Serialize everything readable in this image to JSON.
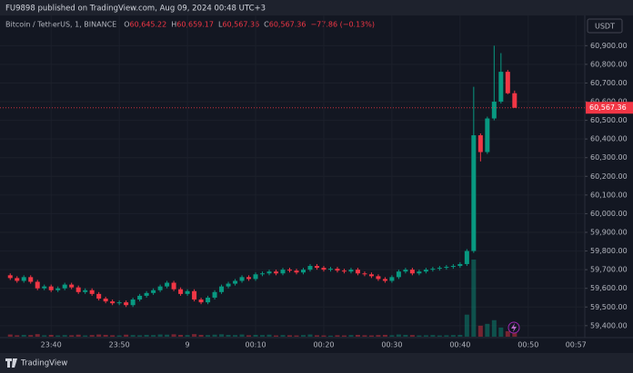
{
  "header": {
    "published": "FU9898 published on TradingView.com, Aug 09, 2024 00:48 UTC+3"
  },
  "footer": {
    "brand": "TradingView"
  },
  "chart_data": {
    "type": "candlestick",
    "legend": {
      "symbol": "Bitcoin / TetherUS, 1, BINANCE",
      "fields": [
        {
          "key": "O",
          "value": "60,645.22"
        },
        {
          "key": "H",
          "value": "60,659.17"
        },
        {
          "key": "L",
          "value": "60,567.36"
        },
        {
          "key": "C",
          "value": "60,567.36"
        }
      ],
      "change": "−77.86 (−0.13%)"
    },
    "currency": "USDT",
    "up_color": "#089981",
    "down_color": "#f23645",
    "grid": true,
    "price_label": {
      "value": 60567.36,
      "label": "60,567.36"
    },
    "x": [
      34,
      35,
      36,
      37,
      38,
      39,
      40,
      41,
      42,
      43,
      44,
      45,
      46,
      47,
      48,
      49,
      50,
      51,
      52,
      53,
      54,
      55,
      56,
      57,
      58,
      59,
      60,
      61,
      62,
      63,
      64,
      65,
      66,
      67,
      68,
      69,
      70,
      71,
      72,
      73,
      74,
      75,
      76,
      77,
      78,
      79,
      80,
      81,
      82,
      83,
      84,
      85,
      86,
      87,
      88,
      89,
      90,
      91,
      92,
      93,
      94,
      95,
      96,
      97,
      98,
      99,
      100,
      101,
      102,
      103,
      104,
      105,
      106,
      107,
      108
    ],
    "open": [
      59670,
      59655,
      59640,
      59660,
      59635,
      59600,
      59610,
      59590,
      59600,
      59620,
      59605,
      59580,
      59590,
      59570,
      59545,
      59530,
      59520,
      59525,
      59510,
      59540,
      59560,
      59575,
      59590,
      59610,
      59630,
      59595,
      59570,
      59585,
      59540,
      59525,
      59550,
      59580,
      59610,
      59625,
      59640,
      59660,
      59650,
      59675,
      59680,
      59690,
      59680,
      59700,
      59695,
      59685,
      59700,
      59720,
      59710,
      59700,
      59705,
      59695,
      59690,
      59700,
      59680,
      59675,
      59665,
      59650,
      59640,
      59660,
      59690,
      59700,
      59680,
      59690,
      59700,
      59705,
      59710,
      59715,
      59720,
      59730,
      59800,
      60420,
      60330,
      60510,
      60600,
      60760,
      60645.22
    ],
    "high": [
      59680,
      59665,
      59670,
      59670,
      59645,
      59620,
      59620,
      59610,
      59630,
      59630,
      59615,
      59600,
      59600,
      59580,
      59555,
      59540,
      59535,
      59535,
      59550,
      59570,
      59585,
      59600,
      59620,
      59640,
      59640,
      59605,
      59595,
      59595,
      59550,
      59560,
      59590,
      59620,
      59635,
      59650,
      59670,
      59670,
      59685,
      59690,
      59700,
      59700,
      59710,
      59710,
      59705,
      59710,
      59730,
      59730,
      59720,
      59715,
      59715,
      59705,
      59710,
      59710,
      59690,
      59685,
      59675,
      59660,
      59670,
      59700,
      59710,
      59710,
      59700,
      59710,
      59715,
      59720,
      59725,
      59730,
      59740,
      59810,
      60680,
      60430,
      60520,
      60900,
      60860,
      60770,
      60659.17
    ],
    "low": [
      59645,
      59630,
      59630,
      59625,
      59590,
      59590,
      59580,
      59580,
      59590,
      59595,
      59570,
      59570,
      59560,
      59535,
      59520,
      59510,
      59510,
      59500,
      59500,
      59530,
      59550,
      59565,
      59580,
      59600,
      59585,
      59560,
      59560,
      59530,
      59515,
      59515,
      59540,
      59570,
      59600,
      59615,
      59630,
      59640,
      59640,
      59665,
      59670,
      59670,
      59670,
      59685,
      59675,
      59675,
      59690,
      59700,
      59690,
      59690,
      59685,
      59680,
      59680,
      59670,
      59665,
      59655,
      59640,
      59630,
      59630,
      59650,
      59680,
      59670,
      59670,
      59680,
      59690,
      59695,
      59700,
      59705,
      59710,
      59720,
      59790,
      60280,
      60320,
      60500,
      60590,
      60640,
      60567.36
    ],
    "close": [
      59655,
      59640,
      59660,
      59635,
      59600,
      59610,
      59590,
      59600,
      59620,
      59605,
      59580,
      59590,
      59570,
      59545,
      59530,
      59520,
      59525,
      59510,
      59540,
      59560,
      59575,
      59590,
      59610,
      59630,
      59595,
      59570,
      59585,
      59540,
      59525,
      59550,
      59580,
      59610,
      59625,
      59640,
      59660,
      59650,
      59675,
      59680,
      59690,
      59680,
      59700,
      59695,
      59685,
      59700,
      59720,
      59710,
      59700,
      59705,
      59695,
      59690,
      59700,
      59680,
      59675,
      59665,
      59650,
      59640,
      59660,
      59690,
      59700,
      59680,
      59690,
      59700,
      59705,
      59710,
      59715,
      59720,
      59730,
      59800,
      60420,
      60330,
      60510,
      60600,
      60760,
      60645.22,
      60567.36
    ],
    "volume": [
      12,
      8,
      10,
      9,
      14,
      8,
      10,
      7,
      9,
      8,
      11,
      7,
      9,
      12,
      10,
      8,
      7,
      11,
      9,
      8,
      10,
      9,
      12,
      11,
      13,
      10,
      9,
      14,
      10,
      9,
      11,
      13,
      10,
      9,
      12,
      8,
      10,
      9,
      11,
      7,
      9,
      8,
      7,
      9,
      12,
      8,
      7,
      6,
      8,
      7,
      9,
      10,
      8,
      7,
      9,
      10,
      8,
      12,
      10,
      9,
      7,
      8,
      9,
      7,
      8,
      9,
      10,
      120,
      420,
      60,
      70,
      90,
      50,
      30,
      20
    ],
    "xlim": [
      32.5,
      118.3
    ],
    "xticks": [
      {
        "value": 40,
        "label": "23:40"
      },
      {
        "value": 50,
        "label": "23:50"
      },
      {
        "value": 60,
        "label": "9"
      },
      {
        "value": 70,
        "label": "00:10"
      },
      {
        "value": 80,
        "label": "00:20"
      },
      {
        "value": 90,
        "label": "00:30"
      },
      {
        "value": 100,
        "label": "00:40"
      },
      {
        "value": 110,
        "label": "00:50"
      },
      {
        "value": 117,
        "label": "00:57"
      }
    ],
    "ylim": [
      59336,
      61062
    ],
    "yticks": [
      {
        "value": 59400,
        "label": "59,400.00"
      },
      {
        "value": 59500,
        "label": "59,500.00"
      },
      {
        "value": 59600,
        "label": "59,600.00"
      },
      {
        "value": 59700,
        "label": "59,700.00"
      },
      {
        "value": 59800,
        "label": "59,800.00"
      },
      {
        "value": 59900,
        "label": "59,900.00"
      },
      {
        "value": 60000,
        "label": "60,000.00"
      },
      {
        "value": 60100,
        "label": "60,100.00"
      },
      {
        "value": 60200,
        "label": "60,200.00"
      },
      {
        "value": 60300,
        "label": "60,300.00"
      },
      {
        "value": 60400,
        "label": "60,400.00"
      },
      {
        "value": 60500,
        "label": "60,500.00"
      },
      {
        "value": 60600,
        "label": "60,600.00"
      },
      {
        "value": 60700,
        "label": "60,700.00"
      },
      {
        "value": 60800,
        "label": "60,800.00"
      },
      {
        "value": 60900,
        "label": "60,900.00"
      }
    ]
  }
}
